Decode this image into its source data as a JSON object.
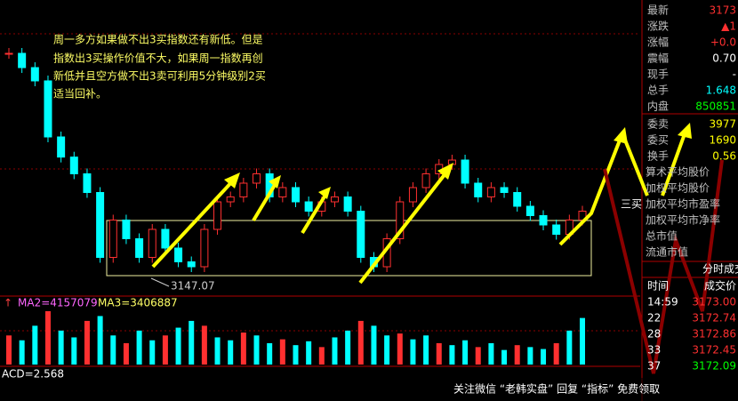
{
  "annotation": [
    "周一多方如果做不出3买指数还有新低。但是",
    "指数出3买操作价值不大，如果周一指数再创",
    "新低并且空方做不出3卖可利用5分钟级别2买",
    "适当回补。"
  ],
  "low_label": "3147.07",
  "buy3_label": "三买",
  "candles": {
    "closes": [
      3193.1,
      3190.2,
      3187.5,
      3176.1,
      3172.0,
      3168.6,
      3164.8,
      3151.6,
      3159.2,
      3155.4,
      3151.6,
      3157.3,
      3153.5,
      3150.7,
      3149.7,
      3157.3,
      3162.9,
      3163.9,
      3166.7,
      3168.6,
      3163.9,
      3165.8,
      3162.9,
      3161.0,
      3162.9,
      3163.9,
      3161.0,
      3151.6,
      3149.7,
      3155.4,
      3162.9,
      3165.8,
      3168.6,
      3170.5,
      3171.4,
      3166.7,
      3163.9,
      3165.8,
      3164.8,
      3162.0,
      3160.1,
      3158.2,
      3156.3,
      3159.2,
      3161.0
    ]
  },
  "volume": {
    "label_ma2": "MA2=4157079",
    "label_ma3": "MA3=3406887",
    "values": [
      30,
      25,
      40,
      55,
      35,
      28,
      45,
      50,
      30,
      22,
      35,
      25,
      30,
      38,
      45,
      40,
      28,
      25,
      33,
      30,
      22,
      26,
      20,
      24,
      18,
      28,
      35,
      45,
      40,
      30,
      32,
      26,
      30,
      22,
      20,
      25,
      18,
      22,
      15,
      20,
      18,
      16,
      22,
      35,
      48
    ]
  },
  "macd_label": "ACD=2.568",
  "quote": {
    "rows": [
      [
        "最新",
        "3173"
      ],
      [
        "涨跌",
        "▲1"
      ],
      [
        "涨幅",
        "+0.0"
      ],
      [
        "震幅",
        "0.70"
      ],
      [
        "现手",
        "-"
      ],
      [
        "总手",
        "1.648"
      ],
      [
        "内盘",
        "850851"
      ],
      [
        "委卖",
        "3977"
      ],
      [
        "委买",
        "1690"
      ],
      [
        "换手",
        "0.56"
      ]
    ],
    "stats": [
      "算术平均股价",
      "加权平均股价",
      "加权平均市盈率",
      "加权平均市净率",
      "总市值",
      "流通市值"
    ],
    "ticks_title": "分时成交",
    "ticks_head": [
      "时间",
      "成交价"
    ],
    "ticks": [
      [
        "14:59",
        "3173.00"
      ],
      [
        "22",
        "3172.74"
      ],
      [
        "28",
        "3172.86"
      ],
      [
        "33",
        "3172.45"
      ],
      [
        "37",
        "3172.09"
      ]
    ]
  },
  "watermark": "关注微信 “老韩实盘” 回复 “指标” 免费领取"
}
